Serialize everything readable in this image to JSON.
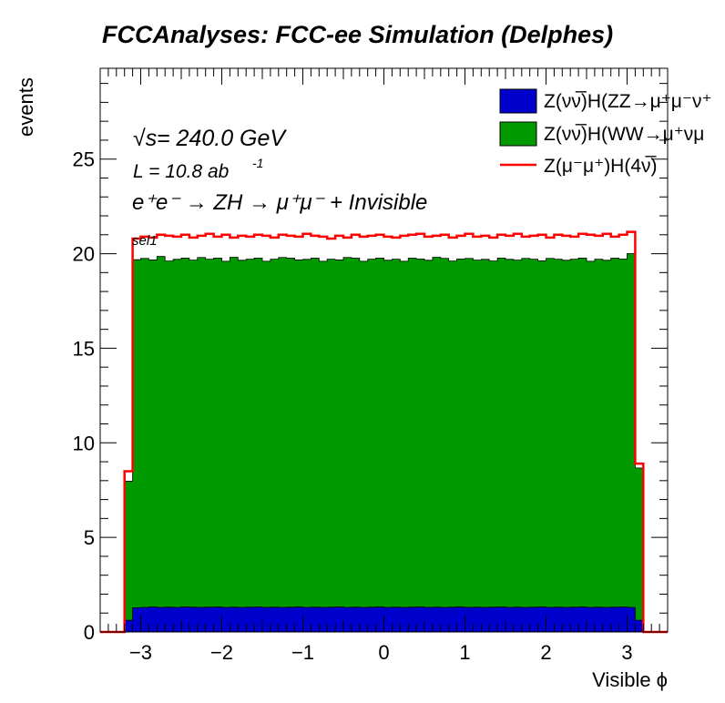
{
  "chart_data": {
    "type": "histogram",
    "title": "FCCAnalyses: FCC-ee Simulation (Delphes)",
    "xlabel": "Visible ϕ",
    "ylabel": "events",
    "xlim": [
      -3.5,
      3.5
    ],
    "ylim": [
      0,
      29.8
    ],
    "x_ticks": [
      -3,
      -2,
      -1,
      0,
      1,
      2,
      3
    ],
    "x_tick_labels": [
      "−3",
      "−2",
      "−1",
      "0",
      "1",
      "2",
      "3"
    ],
    "y_ticks": [
      0,
      5,
      10,
      15,
      20,
      25
    ],
    "y_tick_labels": [
      "0",
      "5",
      "10",
      "15",
      "20",
      "25"
    ],
    "annotations": {
      "sqrt": "√s",
      "energy": " = 240.0 GeV",
      "lumi_base": "L = 10.8 ab",
      "lumi_exp": "-1",
      "process": "e⁺e⁻ → ZH → μ⁺μ⁻ + Invisible",
      "selection": "sel1"
    },
    "bins": {
      "start": -3.2,
      "width": 0.1,
      "count": 64
    },
    "series": [
      {
        "name": "Z(νν̅)H(ZZ→μ⁺μ⁻ν⁺",
        "kind": "stacked-fill",
        "color": "#0000cc",
        "values": [
          0.62,
          1.28,
          1.3,
          1.32,
          1.3,
          1.31,
          1.3,
          1.32,
          1.31,
          1.3,
          1.31,
          1.32,
          1.3,
          1.31,
          1.3,
          1.31,
          1.32,
          1.3,
          1.31,
          1.3,
          1.31,
          1.32,
          1.3,
          1.31,
          1.3,
          1.31,
          1.32,
          1.3,
          1.31,
          1.3,
          1.31,
          1.32,
          1.3,
          1.31,
          1.3,
          1.31,
          1.32,
          1.3,
          1.31,
          1.3,
          1.31,
          1.32,
          1.3,
          1.31,
          1.3,
          1.31,
          1.32,
          1.3,
          1.31,
          1.3,
          1.31,
          1.32,
          1.3,
          1.31,
          1.3,
          1.31,
          1.32,
          1.3,
          1.31,
          1.3,
          1.31,
          1.32,
          1.3,
          0.62
        ]
      },
      {
        "name": "Z(νν̅)H(WW→μ⁺νμ",
        "kind": "stacked-fill",
        "color": "#009900",
        "values": [
          7.35,
          18.4,
          18.45,
          18.35,
          18.55,
          18.3,
          18.4,
          18.45,
          18.35,
          18.5,
          18.4,
          18.45,
          18.3,
          18.5,
          18.35,
          18.4,
          18.45,
          18.3,
          18.4,
          18.5,
          18.45,
          18.35,
          18.4,
          18.45,
          18.3,
          18.4,
          18.35,
          18.5,
          18.45,
          18.3,
          18.4,
          18.45,
          18.35,
          18.4,
          18.3,
          18.45,
          18.4,
          18.35,
          18.5,
          18.45,
          18.3,
          18.4,
          18.45,
          18.35,
          18.4,
          18.3,
          18.45,
          18.4,
          18.35,
          18.45,
          18.4,
          18.3,
          18.45,
          18.4,
          18.35,
          18.4,
          18.45,
          18.3,
          18.4,
          18.35,
          18.45,
          18.4,
          18.7,
          8.05
        ]
      },
      {
        "name": "Z(μ⁻μ⁺)H(4ν̅)",
        "kind": "line",
        "color": "#ff0000",
        "values": [
          8.5,
          20.8,
          20.9,
          20.85,
          21.0,
          20.95,
          20.9,
          21.0,
          20.85,
          20.95,
          21.05,
          20.9,
          21.0,
          20.85,
          20.95,
          20.9,
          21.0,
          20.95,
          20.85,
          21.0,
          20.95,
          20.9,
          21.05,
          20.95,
          20.9,
          20.8,
          20.95,
          20.85,
          21.0,
          20.9,
          20.95,
          21.0,
          20.9,
          20.85,
          20.95,
          21.0,
          21.05,
          20.9,
          20.95,
          21.0,
          20.85,
          20.95,
          21.05,
          20.9,
          20.95,
          20.85,
          21.0,
          20.95,
          21.05,
          20.9,
          20.95,
          21.0,
          20.85,
          21.0,
          20.95,
          20.9,
          21.05,
          21.0,
          20.95,
          21.05,
          20.9,
          21.0,
          21.15,
          8.9
        ]
      }
    ],
    "legend_position": "top-right",
    "grid": false
  }
}
